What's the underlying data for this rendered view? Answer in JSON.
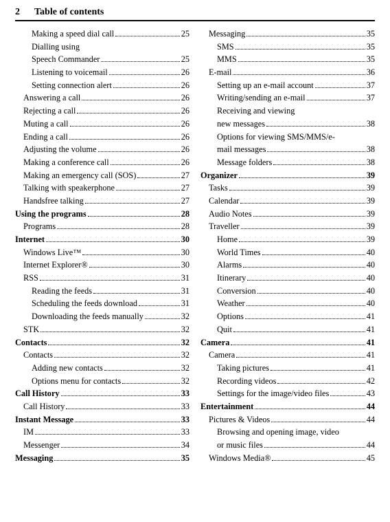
{
  "header": {
    "page_number": "2",
    "title": "Table of contents"
  },
  "left": [
    {
      "level": 3,
      "label": "Making a speed dial call",
      "page": "25"
    },
    {
      "level": 3,
      "label": "Dialling using",
      "page": "",
      "nodots": true
    },
    {
      "level": 3,
      "label": "Speech Commander",
      "page": "25"
    },
    {
      "level": 3,
      "label": "Listening to voicemail",
      "page": "26"
    },
    {
      "level": 3,
      "label": "Setting connection alert",
      "page": "26"
    },
    {
      "level": 2,
      "label": "Answering a call",
      "page": "26"
    },
    {
      "level": 2,
      "label": "Rejecting a call",
      "page": "26"
    },
    {
      "level": 2,
      "label": "Muting a call",
      "page": "26"
    },
    {
      "level": 2,
      "label": "Ending a call",
      "page": "26"
    },
    {
      "level": 2,
      "label": "Adjusting the volume",
      "page": "26"
    },
    {
      "level": 2,
      "label": "Making a conference call",
      "page": "26"
    },
    {
      "level": 2,
      "label": "Making an emergency call (SOS)",
      "page": "27",
      "tight": true
    },
    {
      "level": 2,
      "label": "Talking with speakerphone",
      "page": "27"
    },
    {
      "level": 2,
      "label": "Handsfree talking",
      "page": "27"
    },
    {
      "level": 1,
      "label": "Using the programs",
      "page": "28",
      "bold": true
    },
    {
      "level": 2,
      "label": "Programs",
      "page": "28"
    },
    {
      "level": 1,
      "label": "Internet",
      "page": "30",
      "bold": true
    },
    {
      "level": 2,
      "label": "Windows Live™",
      "page": "30"
    },
    {
      "level": 2,
      "label": "Internet Explorer®",
      "page": "30"
    },
    {
      "level": 2,
      "label": "RSS",
      "page": "31"
    },
    {
      "level": 3,
      "label": "Reading the feeds",
      "page": "31"
    },
    {
      "level": 3,
      "label": "Scheduling the feeds download",
      "page": "31"
    },
    {
      "level": 3,
      "label": "Downloading the feeds manually",
      "page": "32",
      "tight": true
    },
    {
      "level": 2,
      "label": "STK",
      "page": "32"
    },
    {
      "level": 1,
      "label": "Contacts",
      "page": "32",
      "bold": true
    },
    {
      "level": 2,
      "label": "Contacts",
      "page": "32"
    },
    {
      "level": 3,
      "label": "Adding new contacts",
      "page": "32"
    },
    {
      "level": 3,
      "label": "Options menu for contacts",
      "page": "32"
    },
    {
      "level": 1,
      "label": "Call History",
      "page": "33",
      "bold": true
    },
    {
      "level": 2,
      "label": "Call History",
      "page": "33"
    },
    {
      "level": 1,
      "label": "Instant Message",
      "page": "33",
      "bold": true
    },
    {
      "level": 2,
      "label": "IM",
      "page": "33"
    },
    {
      "level": 2,
      "label": "Messenger",
      "page": "34"
    },
    {
      "level": 1,
      "label": "Messaging",
      "page": "35",
      "bold": true
    }
  ],
  "right": [
    {
      "level": 2,
      "label": "Messaging",
      "page": "35"
    },
    {
      "level": 3,
      "label": "SMS",
      "page": "35"
    },
    {
      "level": 3,
      "label": "MMS",
      "page": "35"
    },
    {
      "level": 2,
      "label": "E-mail",
      "page": "36"
    },
    {
      "level": 3,
      "label": "Setting up an e-mail account",
      "page": "37"
    },
    {
      "level": 3,
      "label": "Writing/sending an e-mail",
      "page": "37"
    },
    {
      "level": 3,
      "label": "Receiving and viewing",
      "page": "",
      "nodots": true
    },
    {
      "level": 3,
      "label": "new messages",
      "page": "38"
    },
    {
      "level": 3,
      "label": "Options for viewing SMS/MMS/e-",
      "page": "",
      "nodots": true
    },
    {
      "level": 3,
      "label": "mail messages",
      "page": "38"
    },
    {
      "level": 3,
      "label": "Message folders",
      "page": "38"
    },
    {
      "level": 1,
      "label": "Organizer",
      "page": "39",
      "bold": true
    },
    {
      "level": 2,
      "label": "Tasks",
      "page": "39"
    },
    {
      "level": 2,
      "label": "Calendar",
      "page": "39"
    },
    {
      "level": 2,
      "label": "Audio Notes",
      "page": "39"
    },
    {
      "level": 2,
      "label": "Traveller",
      "page": "39"
    },
    {
      "level": 3,
      "label": "Home",
      "page": "39"
    },
    {
      "level": 3,
      "label": "World Times",
      "page": "40"
    },
    {
      "level": 3,
      "label": "Alarms",
      "page": "40"
    },
    {
      "level": 3,
      "label": "Itinerary",
      "page": "40"
    },
    {
      "level": 3,
      "label": "Conversion",
      "page": "40"
    },
    {
      "level": 3,
      "label": "Weather",
      "page": "40"
    },
    {
      "level": 3,
      "label": "Options",
      "page": "41"
    },
    {
      "level": 3,
      "label": "Quit",
      "page": "41"
    },
    {
      "level": 1,
      "label": "Camera",
      "page": "41",
      "bold": true
    },
    {
      "level": 2,
      "label": "Camera",
      "page": "41"
    },
    {
      "level": 3,
      "label": "Taking pictures",
      "page": "41"
    },
    {
      "level": 3,
      "label": "Recording videos",
      "page": "42"
    },
    {
      "level": 3,
      "label": "Settings for the image/video files",
      "page": "43",
      "tight": true
    },
    {
      "level": 1,
      "label": "Entertainment",
      "page": "44",
      "bold": true
    },
    {
      "level": 2,
      "label": "Pictures & Videos",
      "page": "44"
    },
    {
      "level": 3,
      "label": "Browsing and opening image, video",
      "page": "",
      "nodots": true
    },
    {
      "level": 3,
      "label": "or music files",
      "page": "44"
    },
    {
      "level": 2,
      "label": "Windows Media®",
      "page": "45"
    }
  ]
}
